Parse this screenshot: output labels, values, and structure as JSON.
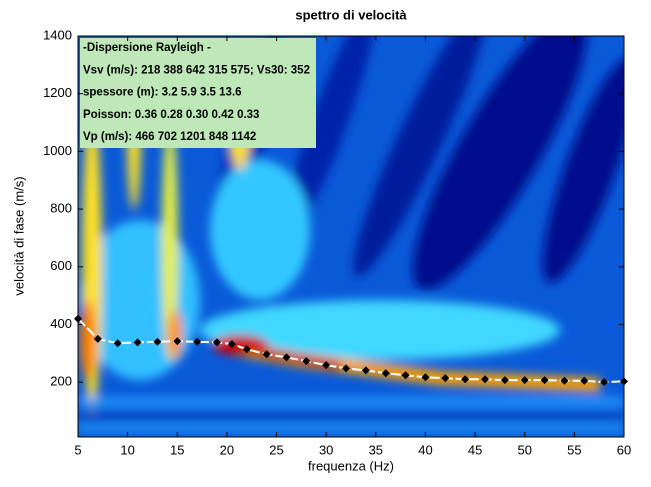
{
  "chart_data": {
    "type": "line",
    "title": "spettro di velocità",
    "xlabel": "frequenza (Hz)",
    "ylabel": "velocità di fase (m/s)",
    "annotation_lines": [
      "-Dispersione Rayleigh -",
      "Vsv (m/s): 218  388  642  315  575; Vs30: 352",
      "spessore (m): 3.2    5.9    3.5   13.6",
      "Poisson: 0.36  0.28  0.30  0.42  0.33",
      "Vp (m/s): 466   702  1201   848  1142"
    ],
    "x": [
      5,
      7,
      9,
      11,
      13,
      15,
      17,
      19,
      20.5,
      22,
      24,
      26,
      28,
      30,
      32,
      34,
      36,
      38,
      40,
      42,
      44,
      46,
      48,
      50,
      52,
      54,
      56,
      58,
      60
    ],
    "values": [
      420,
      350,
      335,
      338,
      340,
      342,
      340,
      338,
      332,
      314,
      297,
      286,
      273,
      259,
      248,
      241,
      231,
      224,
      217,
      214,
      210,
      210,
      207,
      207,
      207,
      205,
      205,
      200,
      203
    ],
    "color": "#000000",
    "line_color": "#ffffff",
    "xlim": [
      5,
      60
    ],
    "xticks": [
      5,
      10,
      15,
      20,
      25,
      30,
      35,
      40,
      45,
      50,
      55,
      60
    ],
    "ylim": [
      10,
      1400
    ],
    "yticks": [
      200,
      400,
      600,
      800,
      1000,
      1200,
      1400
    ]
  }
}
